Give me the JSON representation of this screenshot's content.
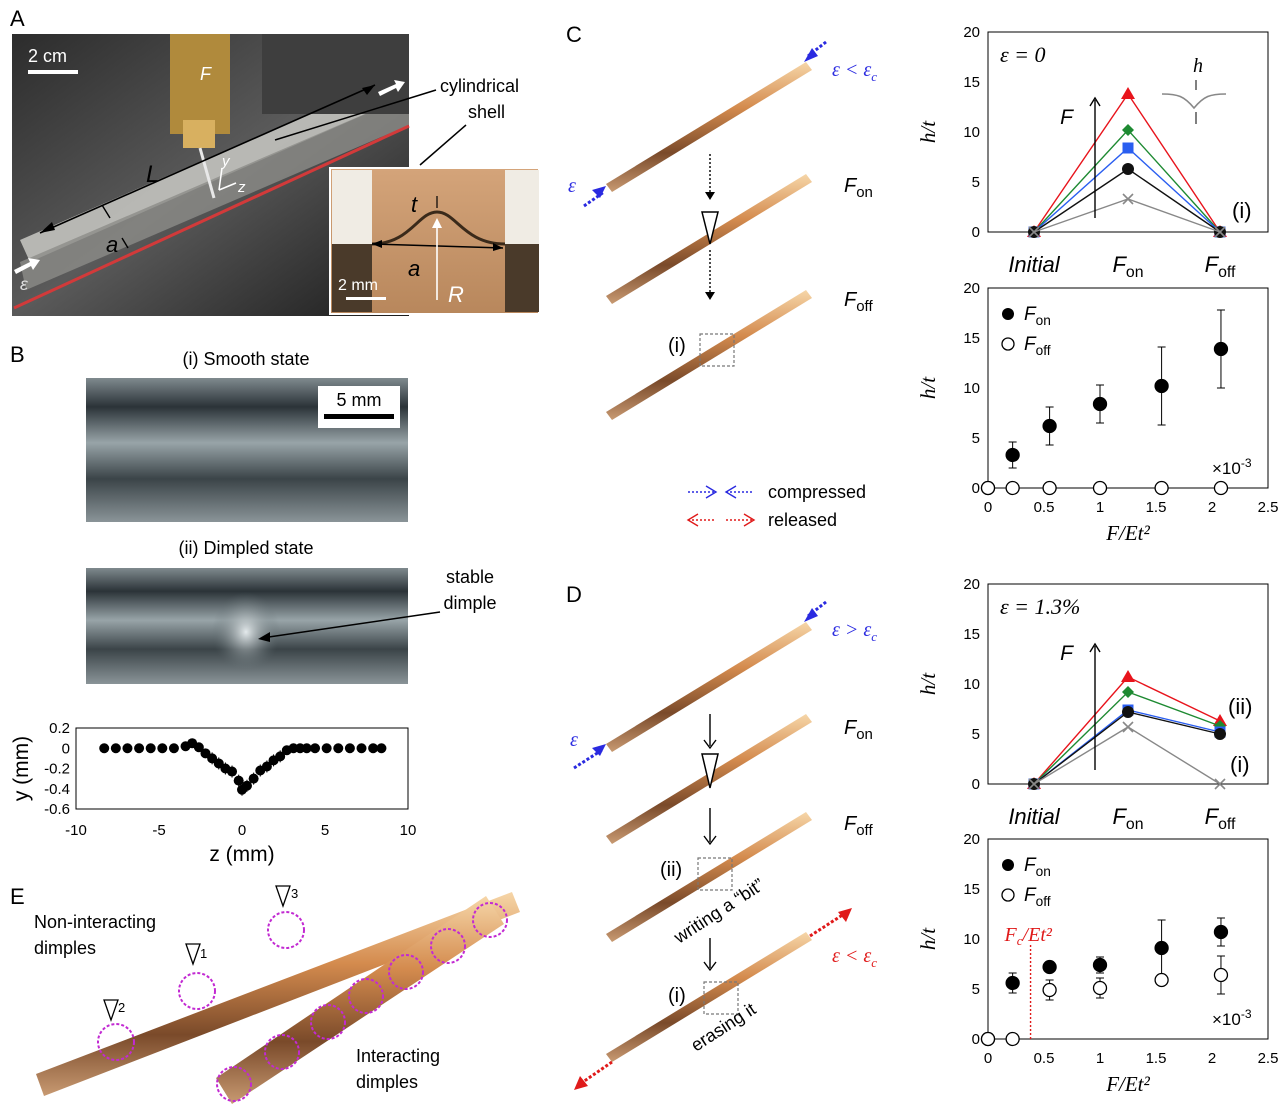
{
  "panels": {
    "A": {
      "letter": "A",
      "scale_main": "2 cm",
      "label_F": "F",
      "label_cyl_1": "cylindrical",
      "label_cyl_2": "shell",
      "label_L": "L",
      "label_a": "a",
      "label_y": "y",
      "label_z": "z",
      "label_eps": "ε",
      "inset": {
        "label_t": "t",
        "label_a": "a",
        "label_R": "R",
        "scale": "2 mm"
      }
    },
    "B": {
      "letter": "B",
      "title_i": "(i) Smooth state",
      "title_ii": "(ii) Dimpled state",
      "scale": "5 mm",
      "dimple_1": "stable",
      "dimple_2": "dimple"
    },
    "C": {
      "letter": "C",
      "label_Fon": "F",
      "sub_on": "on",
      "label_Foff": "F",
      "sub_off": "off",
      "mark_i": "(i)",
      "eps_top": "ε < ε",
      "eps_top_sub": "c",
      "eps_left": "ε",
      "legend_compressed": "compressed",
      "legend_released": "released"
    },
    "D": {
      "letter": "D",
      "label_Fon": "F",
      "sub_on": "on",
      "label_Foff": "F",
      "sub_off": "off",
      "mark_ii": "(ii)",
      "mark_i": "(i)",
      "eps_top": "ε > ε",
      "eps_top_sub": "c",
      "eps_left": "ε",
      "eps_bottom": "ε < ε",
      "eps_bottom_sub": "c",
      "writing": "writing a “bit”",
      "erasing": "erasing it"
    },
    "E": {
      "letter": "E",
      "noninteract_1": "Non-interacting",
      "noninteract_2": "dimples",
      "interact_1": "Interacting",
      "interact_2": "dimples",
      "tri_1": "1",
      "tri_2": "2",
      "tri_3": "3"
    }
  },
  "chart_data": [
    {
      "id": "B-profile",
      "type": "scatter",
      "xlabel": "z (mm)",
      "ylabel": "y (mm)",
      "xlim": [
        -10,
        10
      ],
      "ylim": [
        -0.6,
        0.2
      ],
      "xticks": [
        "-10",
        "-5",
        "0",
        "5",
        "10"
      ],
      "yticks": [
        "0.2",
        "0",
        "-0.2",
        "-0.4",
        "-0.6"
      ],
      "x": [
        -8.3,
        -7.6,
        -6.9,
        -6.2,
        -5.5,
        -4.8,
        -4.1,
        -3.4,
        -3.0,
        -2.6,
        -2.2,
        -1.8,
        -1.4,
        -1.0,
        -0.6,
        -0.2,
        0.0,
        0.3,
        0.7,
        1.1,
        1.5,
        1.9,
        2.3,
        2.7,
        3.1,
        3.5,
        3.9,
        4.4,
        5.1,
        5.8,
        6.5,
        7.2,
        7.9,
        8.4
      ],
      "y": [
        0,
        0,
        0,
        0,
        0,
        0,
        0,
        0.02,
        0.05,
        0.01,
        -0.05,
        -0.1,
        -0.15,
        -0.2,
        -0.23,
        -0.32,
        -0.41,
        -0.37,
        -0.3,
        -0.22,
        -0.18,
        -0.12,
        -0.08,
        -0.02,
        0,
        0,
        0,
        0,
        0,
        0,
        0,
        0,
        0,
        0
      ]
    },
    {
      "id": "C-top",
      "type": "line",
      "annotation": "ε = 0",
      "ylabel": "h/t",
      "ylim": [
        0,
        20
      ],
      "yticks": [
        "20",
        "15",
        "10",
        "5",
        "0"
      ],
      "categories": [
        "Initial",
        "F_on",
        "F_off"
      ],
      "cat_labels": [
        {
          "main": "Initial",
          "sub": ""
        },
        {
          "main": "F",
          "sub": "on"
        },
        {
          "main": "F",
          "sub": "off"
        }
      ],
      "arrow_label": "F",
      "end_label": "(i)",
      "inset_label": "h",
      "series": [
        {
          "values": [
            0,
            13.8,
            0
          ],
          "color": "#e8141c",
          "marker": "triangle"
        },
        {
          "values": [
            0,
            10.2,
            0
          ],
          "color": "#1e8a32",
          "marker": "diamond"
        },
        {
          "values": [
            0,
            8.4,
            0
          ],
          "color": "#2a5ef0",
          "marker": "square"
        },
        {
          "values": [
            0,
            6.3,
            0
          ],
          "color": "#111111",
          "marker": "circle"
        },
        {
          "values": [
            0,
            3.3,
            0
          ],
          "color": "#888888",
          "marker": "x"
        }
      ]
    },
    {
      "id": "C-bottom",
      "type": "scatter",
      "xlabel": "F/Et²",
      "ylabel": "h/t",
      "xlim": [
        0,
        2.5
      ],
      "ylim": [
        0,
        20
      ],
      "xticks": [
        "0",
        "0.5",
        "1",
        "1.5",
        "2",
        "2.5"
      ],
      "yticks": [
        "20",
        "15",
        "10",
        "5",
        "0"
      ],
      "x_multiplier": "×10",
      "x_multiplier_exp": "-3",
      "legend": [
        {
          "main": "F",
          "sub": "on"
        },
        {
          "main": "F",
          "sub": "off"
        }
      ],
      "series": [
        {
          "name": "F_on",
          "x": [
            0,
            0.22,
            0.55,
            1.0,
            1.55,
            2.08
          ],
          "y": [
            0,
            3.3,
            6.2,
            8.4,
            10.2,
            13.9
          ],
          "err": [
            0,
            1.3,
            1.9,
            1.9,
            3.9,
            3.9
          ],
          "filled": true
        },
        {
          "name": "F_off",
          "x": [
            0,
            0.22,
            0.55,
            1.0,
            1.55,
            2.08
          ],
          "y": [
            0,
            0,
            0,
            0,
            0,
            0
          ],
          "err": [
            0,
            0,
            0,
            0,
            0,
            0
          ],
          "filled": false
        }
      ]
    },
    {
      "id": "D-top",
      "type": "line",
      "annotation": "ε = 1.3%",
      "ylabel": "h/t",
      "ylim": [
        0,
        20
      ],
      "yticks": [
        "20",
        "15",
        "10",
        "5",
        "0"
      ],
      "categories": [
        "Initial",
        "F_on",
        "F_off"
      ],
      "cat_labels": [
        {
          "main": "Initial",
          "sub": ""
        },
        {
          "main": "F",
          "sub": "on"
        },
        {
          "main": "F",
          "sub": "off"
        }
      ],
      "arrow_label": "F",
      "end_label_ii": "(ii)",
      "end_label_i": "(i)",
      "series": [
        {
          "values": [
            0,
            10.7,
            6.3
          ],
          "color": "#e8141c",
          "marker": "triangle"
        },
        {
          "values": [
            0,
            9.2,
            5.8
          ],
          "color": "#1e8a32",
          "marker": "diamond"
        },
        {
          "values": [
            0,
            7.4,
            5.2
          ],
          "color": "#2a5ef0",
          "marker": "square"
        },
        {
          "values": [
            0,
            7.2,
            5.0
          ],
          "color": "#111111",
          "marker": "circle"
        },
        {
          "values": [
            0,
            5.7,
            0
          ],
          "color": "#888888",
          "marker": "x"
        }
      ]
    },
    {
      "id": "D-bottom",
      "type": "scatter",
      "xlabel": "F/Et²",
      "ylabel": "h/t",
      "xlim": [
        0,
        2.5
      ],
      "ylim": [
        0,
        20
      ],
      "xticks": [
        "0",
        "0.5",
        "1",
        "1.5",
        "2",
        "2.5"
      ],
      "yticks": [
        "20",
        "15",
        "10",
        "5",
        "0"
      ],
      "x_multiplier": "×10",
      "x_multiplier_exp": "-3",
      "critical_x": 0.38,
      "critical_label": "F",
      "critical_label_sub": "c",
      "critical_label_rest": "/Et²",
      "legend": [
        {
          "main": "F",
          "sub": "on"
        },
        {
          "main": "F",
          "sub": "off"
        }
      ],
      "series": [
        {
          "name": "F_on",
          "x": [
            0,
            0.22,
            0.55,
            1.0,
            1.55,
            2.08
          ],
          "y": [
            0,
            5.6,
            7.2,
            7.4,
            9.1,
            10.7
          ],
          "err": [
            0,
            1.0,
            0.5,
            0.8,
            2.8,
            1.4
          ],
          "filled": true
        },
        {
          "name": "F_off",
          "x": [
            0,
            0.22,
            0.55,
            1.0,
            1.55,
            2.08
          ],
          "y": [
            0,
            0,
            4.9,
            5.1,
            5.9,
            6.4
          ],
          "err": [
            0,
            0,
            1.0,
            1.0,
            0.5,
            1.9
          ],
          "filled": false
        }
      ]
    }
  ]
}
